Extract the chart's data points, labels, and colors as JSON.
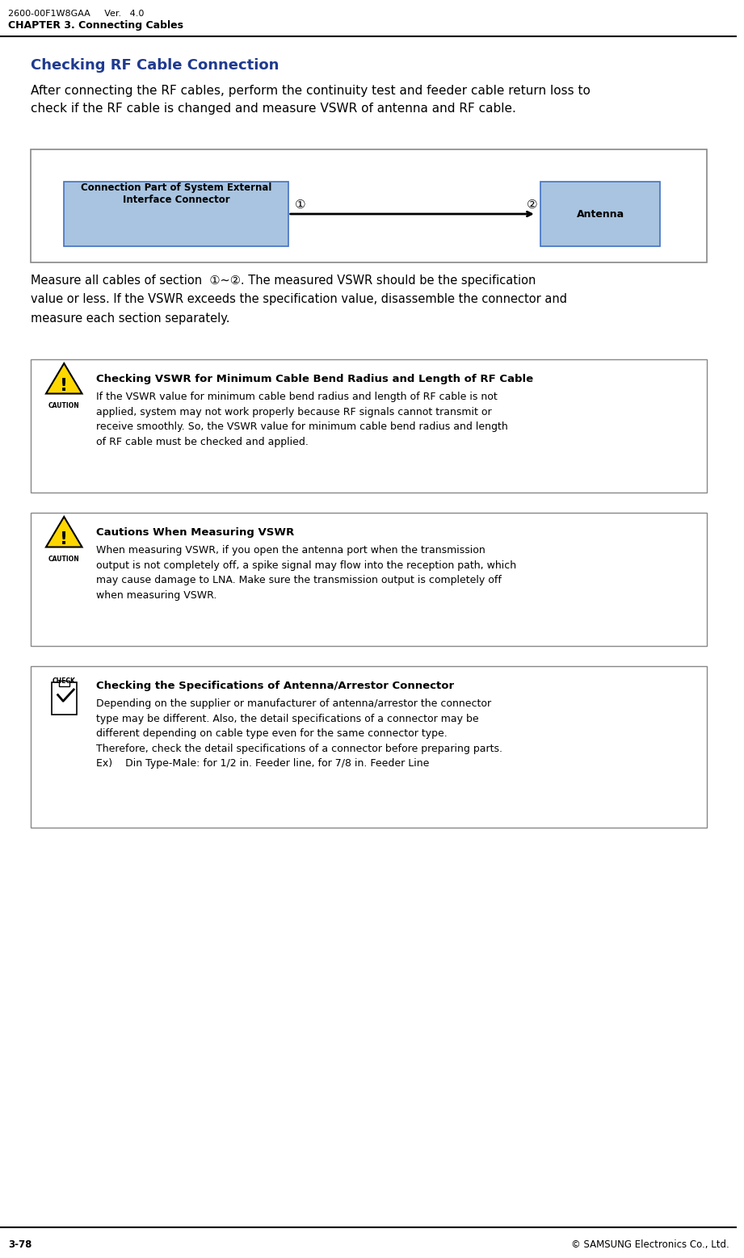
{
  "header_left": "2600-00F1W8GAA     Ver.   4.0",
  "header_left2": "CHAPTER 3. Connecting Cables",
  "footer_left": "3-78",
  "footer_right": "© SAMSUNG Electronics Co., Ltd.",
  "section_title": "Checking RF Cable Connection",
  "section_title_color": "#1F3A8F",
  "intro_text": "After connecting the RF cables, perform the continuity test and feeder cable return loss to\ncheck if the RF cable is changed and measure VSWR of antenna and RF cable.",
  "diagram_box1_text": "Connection Part of System External\nInterface Connector",
  "diagram_box2_text": "Antenna",
  "diagram_box_color": "#A8C4E0",
  "measure_text": "Measure all cables of section  ①~②. The measured VSWR should be the specification\nvalue or less. If the VSWR exceeds the specification value, disassemble the connector and\nmeasure each section separately.",
  "caution1_title": "Checking VSWR for Minimum Cable Bend Radius and Length of RF Cable",
  "caution1_body": "If the VSWR value for minimum cable bend radius and length of RF cable is not\napplied, system may not work properly because RF signals cannot transmit or\nreceive smoothly. So, the VSWR value for minimum cable bend radius and length\nof RF cable must be checked and applied.",
  "caution2_title": "Cautions When Measuring VSWR",
  "caution2_body": "When measuring VSWR, if you open the antenna port when the transmission\noutput is not completely off, a spike signal may flow into the reception path, which\nmay cause damage to LNA. Make sure the transmission output is completely off\nwhen measuring VSWR.",
  "check_title": "Checking the Specifications of Antenna/Arrestor Connector",
  "check_body": "Depending on the supplier or manufacturer of antenna/arrestor the connector\ntype may be different. Also, the detail specifications of a connector may be\ndifferent depending on cable type even for the same connector type.\nTherefore, check the detail specifications of a connector before preparing parts.\nEx)    Din Type-Male: for 1/2 in. Feeder line, for 7/8 in. Feeder Line",
  "box_border_color": "#888888",
  "box_bg_color": "#FFFFFF",
  "caution_box_bg": "#FFFFFF"
}
